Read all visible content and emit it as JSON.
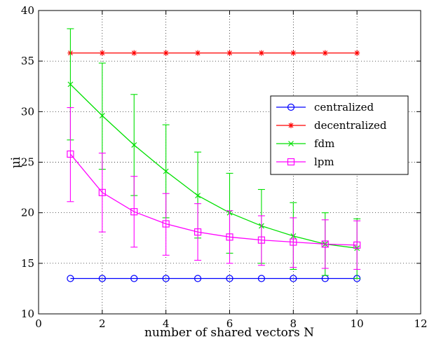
{
  "chart_data": {
    "type": "line",
    "xlabel": "number of shared vectors N",
    "ylabel": "μi",
    "xlim": [
      0,
      12
    ],
    "ylim": [
      10,
      40
    ],
    "xticks": [
      0,
      2,
      4,
      6,
      8,
      10,
      12
    ],
    "yticks": [
      10,
      15,
      20,
      25,
      30,
      35,
      40
    ],
    "grid": true,
    "legend_position": "right",
    "x": [
      1,
      2,
      3,
      4,
      5,
      6,
      7,
      8,
      9,
      10
    ],
    "series": [
      {
        "name": "centralized",
        "color": "#0000ff",
        "marker": "circle",
        "values": [
          13.5,
          13.5,
          13.5,
          13.5,
          13.5,
          13.5,
          13.5,
          13.5,
          13.5,
          13.5
        ]
      },
      {
        "name": "decentralized",
        "color": "#ff0000",
        "marker": "star",
        "values": [
          35.8,
          35.8,
          35.8,
          35.8,
          35.8,
          35.8,
          35.8,
          35.8,
          35.8,
          35.8
        ]
      },
      {
        "name": "fdm",
        "color": "#00e000",
        "marker": "x",
        "values": [
          32.7,
          29.6,
          26.7,
          24.1,
          21.7,
          20.0,
          18.7,
          17.7,
          16.9,
          16.5
        ],
        "error_low": [
          27.2,
          24.3,
          21.7,
          19.5,
          17.5,
          16.0,
          15.0,
          14.4,
          13.8,
          13.5
        ],
        "error_high": [
          38.2,
          34.8,
          31.7,
          28.7,
          26.0,
          23.9,
          22.3,
          21.0,
          20.0,
          19.4
        ]
      },
      {
        "name": "lpm",
        "color": "#ff00ff",
        "marker": "square",
        "values": [
          25.8,
          22.0,
          20.1,
          18.9,
          18.1,
          17.6,
          17.3,
          17.1,
          16.9,
          16.8
        ],
        "error_low": [
          21.1,
          18.1,
          16.6,
          15.8,
          15.3,
          15.0,
          14.8,
          14.6,
          14.5,
          14.4
        ],
        "error_high": [
          30.4,
          25.9,
          23.6,
          21.9,
          20.9,
          20.2,
          19.7,
          19.5,
          19.3,
          19.2
        ]
      }
    ]
  }
}
